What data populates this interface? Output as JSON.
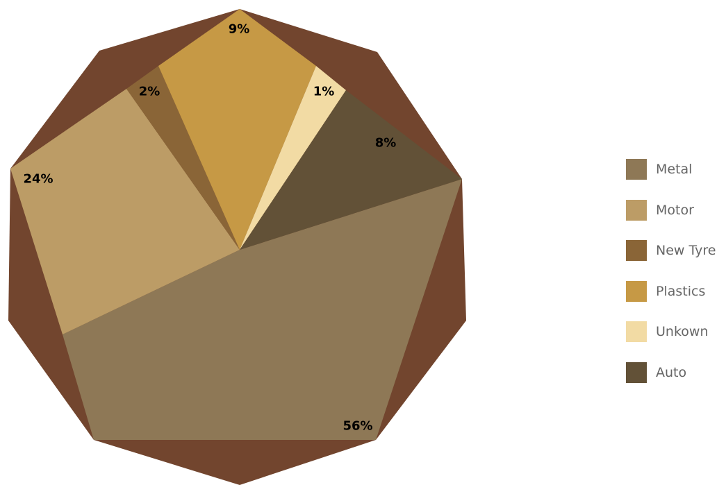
{
  "chart_data": {
    "type": "pie",
    "title": "",
    "background_color": "#72452e",
    "legend_position": "right",
    "slices": [
      {
        "label": "Metal",
        "value": 56,
        "display": "56%",
        "color": "#8e7856"
      },
      {
        "label": "Motor",
        "value": 24,
        "display": "24%",
        "color": "#bc9c66"
      },
      {
        "label": "New Tyre",
        "value": 2,
        "display": "2%",
        "color": "#8a6537"
      },
      {
        "label": "Plastics",
        "value": 9,
        "display": "9%",
        "color": "#c69945"
      },
      {
        "label": "Unkown",
        "value": 1,
        "display": "1%",
        "color": "#f2dba4"
      },
      {
        "label": "Auto",
        "value": 8,
        "display": "8%",
        "color": "#625137"
      }
    ]
  }
}
